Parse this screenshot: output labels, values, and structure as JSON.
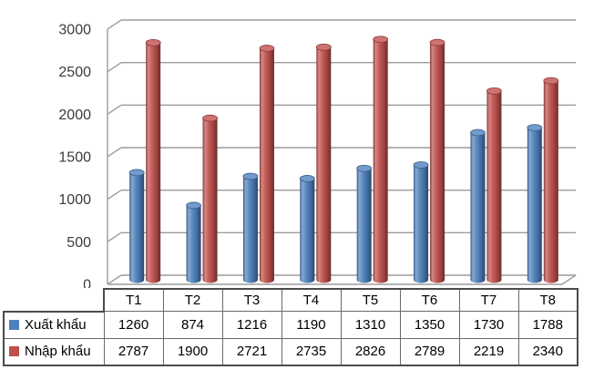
{
  "chart_data": {
    "type": "bar",
    "style": "3d-cylinder",
    "title": "",
    "categories": [
      "T1",
      "T2",
      "T3",
      "T4",
      "T5",
      "T6",
      "T7",
      "T8"
    ],
    "series": [
      {
        "name": "Xuất khẩu",
        "color": "#4F81BD",
        "values": [
          1260,
          874,
          1216,
          1190,
          1310,
          1350,
          1730,
          1788
        ]
      },
      {
        "name": "Nhập khẩu",
        "color": "#C0504D",
        "values": [
          2787,
          1900,
          2721,
          2735,
          2826,
          2789,
          2219,
          2340
        ]
      }
    ],
    "y_axis": {
      "min": 0,
      "max": 3000,
      "step": 500,
      "tick_labels": [
        "0",
        "500",
        "1000",
        "1500",
        "2000",
        "2500",
        "3000"
      ]
    },
    "grid": true,
    "legend_position": "data-table",
    "data_table_shown": true
  },
  "colors": {
    "series_1": "#4F81BD",
    "series_2": "#C0504D",
    "gridline": "#9c9c9c",
    "axis_text": "#3b3b3b",
    "table_border_inner": "#6a6a6a",
    "table_border_outer": "#4b4b4b",
    "table_text": "#000000",
    "background": "#ffffff"
  }
}
